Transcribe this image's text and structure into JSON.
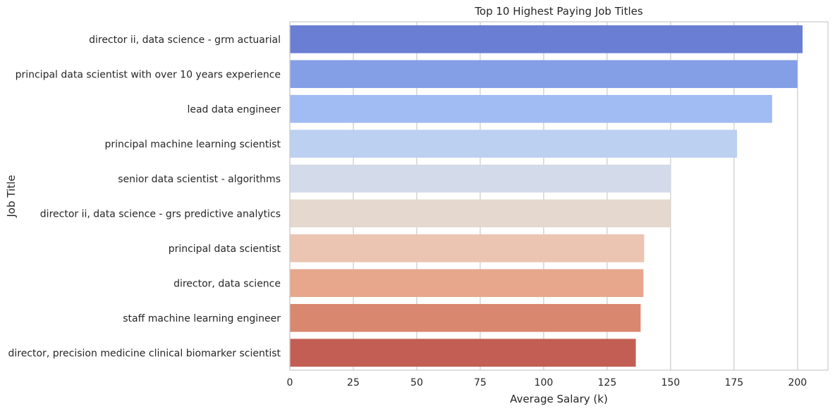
{
  "chart_data": {
    "type": "bar",
    "orientation": "horizontal",
    "title": "Top 10 Highest Paying Job Titles",
    "xlabel": "Average Salary (k)",
    "ylabel": "Job Title",
    "xlim": [
      0,
      212
    ],
    "xticks": [
      0,
      25,
      50,
      75,
      100,
      125,
      150,
      175,
      200
    ],
    "grid": true,
    "categories": [
      "director ii, data science - grm actuarial",
      "principal data scientist with over 10 years experience",
      "lead data engineer",
      "principal machine learning scientist",
      "senior data scientist - algorithms",
      "director ii, data science - grs predictive analytics",
      "principal data scientist",
      "director, data science",
      "staff machine learning engineer",
      "director, precision medicine clinical biomarker scientist"
    ],
    "values": [
      202,
      200,
      190,
      176.2,
      150,
      150,
      139.6,
      139.3,
      138.2,
      136.3
    ],
    "colors": [
      "#6a7fd3",
      "#859fe6",
      "#a1bcf3",
      "#bcd0f1",
      "#d3daea",
      "#e4d8cf",
      "#ecc4b2",
      "#e7a78d",
      "#d9876f",
      "#c25e53"
    ]
  }
}
